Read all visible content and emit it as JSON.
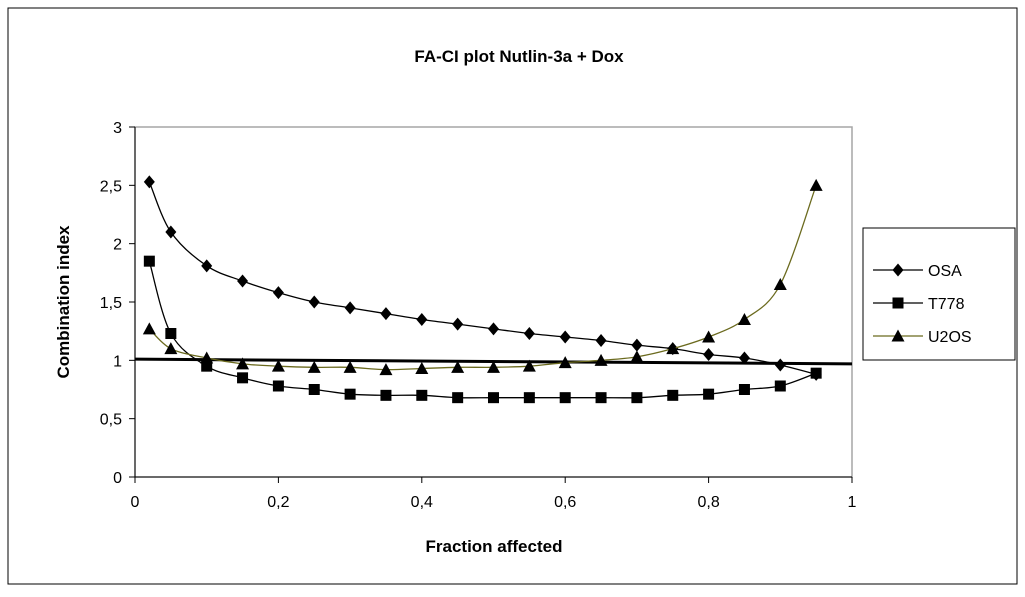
{
  "chart_data": {
    "type": "line",
    "title": "FA-CI plot Nutlin-3a + Dox",
    "xlabel": "Fraction affected",
    "ylabel": "Combination index",
    "xlim": [
      0,
      1
    ],
    "ylim": [
      0,
      3
    ],
    "x_ticks": [
      0,
      0.2,
      0.4,
      0.6,
      0.8,
      1
    ],
    "x_tick_labels": [
      "0",
      "0,2",
      "0,4",
      "0,6",
      "0,8",
      "1"
    ],
    "y_ticks": [
      0,
      0.5,
      1,
      1.5,
      2,
      2.5,
      3
    ],
    "y_tick_labels": [
      "0",
      "0,5",
      "1",
      "1,5",
      "2",
      "2,5",
      "3"
    ],
    "grid": false,
    "legend_position": "right",
    "reference_line": {
      "y_start": 1.01,
      "y_end": 0.97
    },
    "series": [
      {
        "name": "OSA",
        "marker": "diamond",
        "color": "#000000",
        "x": [
          0.02,
          0.05,
          0.1,
          0.15,
          0.2,
          0.25,
          0.3,
          0.35,
          0.4,
          0.45,
          0.5,
          0.55,
          0.6,
          0.65,
          0.7,
          0.75,
          0.8,
          0.85,
          0.9,
          0.95
        ],
        "y": [
          2.53,
          2.1,
          1.81,
          1.68,
          1.58,
          1.5,
          1.45,
          1.4,
          1.35,
          1.31,
          1.27,
          1.23,
          1.2,
          1.17,
          1.13,
          1.1,
          1.05,
          1.02,
          0.96,
          0.88
        ]
      },
      {
        "name": "T778",
        "marker": "square",
        "color": "#000000",
        "x": [
          0.02,
          0.05,
          0.1,
          0.15,
          0.2,
          0.25,
          0.3,
          0.35,
          0.4,
          0.45,
          0.5,
          0.55,
          0.6,
          0.65,
          0.7,
          0.75,
          0.8,
          0.85,
          0.9,
          0.95
        ],
        "y": [
          1.85,
          1.23,
          0.95,
          0.85,
          0.78,
          0.75,
          0.71,
          0.7,
          0.7,
          0.68,
          0.68,
          0.68,
          0.68,
          0.68,
          0.68,
          0.7,
          0.71,
          0.75,
          0.78,
          0.89
        ]
      },
      {
        "name": "U2OS",
        "marker": "triangle",
        "color": "#000000",
        "line_color": "#6b6a1e",
        "x": [
          0.02,
          0.05,
          0.1,
          0.15,
          0.2,
          0.25,
          0.3,
          0.35,
          0.4,
          0.45,
          0.5,
          0.55,
          0.6,
          0.65,
          0.7,
          0.75,
          0.8,
          0.85,
          0.9,
          0.95
        ],
        "y": [
          1.27,
          1.1,
          1.02,
          0.97,
          0.95,
          0.94,
          0.94,
          0.92,
          0.93,
          0.94,
          0.94,
          0.95,
          0.98,
          1.0,
          1.03,
          1.1,
          1.2,
          1.35,
          1.65,
          2.5
        ]
      }
    ]
  }
}
